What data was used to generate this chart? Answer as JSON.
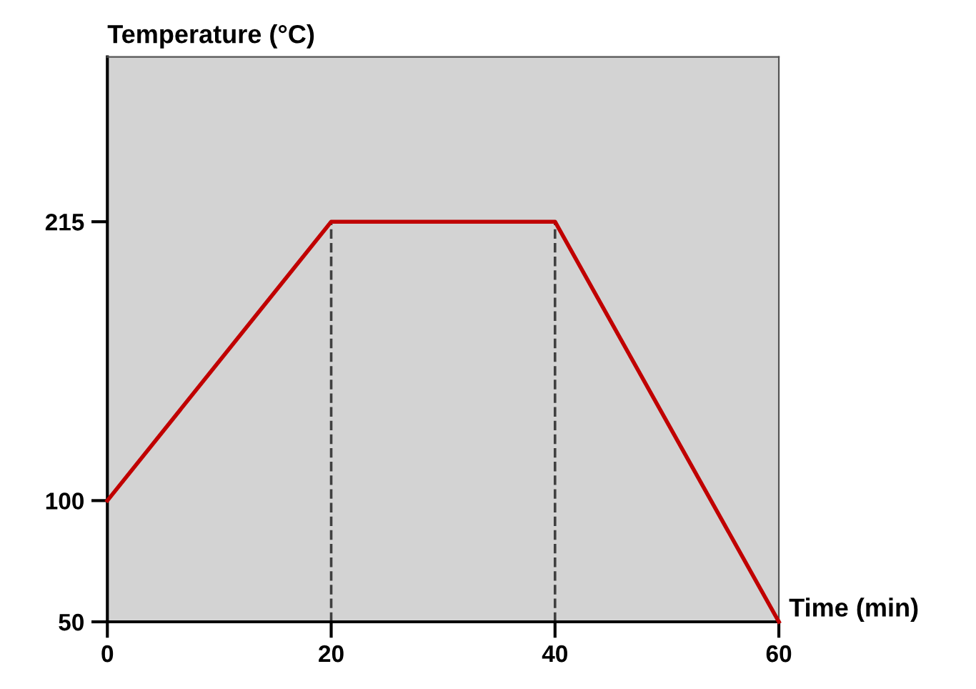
{
  "chart_data": {
    "type": "line",
    "xlabel": "Time (min)",
    "ylabel": "Temperature (°C)",
    "x": [
      0,
      20,
      40,
      60
    ],
    "series": [
      {
        "color": "#c00000",
        "values": [
          100,
          215,
          215,
          50
        ]
      }
    ],
    "xlim": [
      0,
      60
    ],
    "xticks": [
      0,
      20,
      40,
      60
    ],
    "ylim": [
      50,
      283
    ],
    "yticks": [
      50,
      100,
      215
    ],
    "grid": false,
    "marker": "none",
    "line_style": "solid",
    "ref_lines": [
      {
        "axis": "x",
        "value": 20,
        "color": "#404040",
        "line_style": "dashed"
      },
      {
        "axis": "x",
        "value": 40,
        "color": "#404040",
        "line_style": "dashed"
      }
    ]
  }
}
